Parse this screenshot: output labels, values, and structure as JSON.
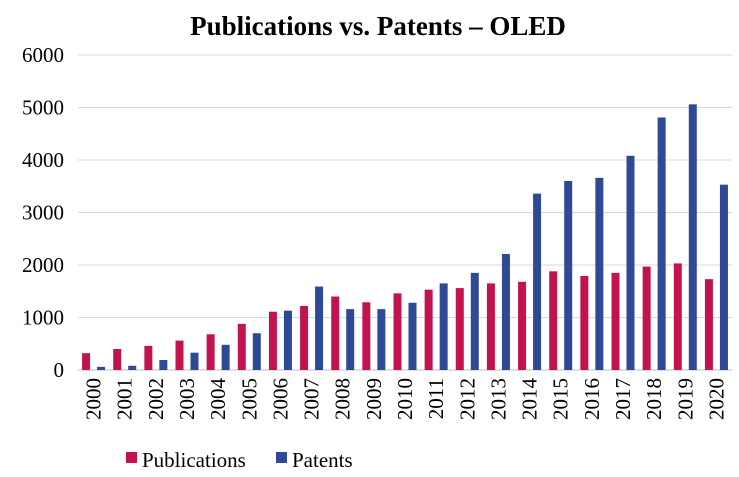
{
  "chart_data": {
    "type": "bar",
    "title": "Publications vs. Patents – OLED",
    "xlabel": "",
    "ylabel": "",
    "ylim": [
      0,
      6000
    ],
    "yticks": [
      "0",
      "1000",
      "2000",
      "3000",
      "4000",
      "5000",
      "6000"
    ],
    "grid": true,
    "legend_position": "bottom-left",
    "categories": [
      "2000",
      "2001",
      "2002",
      "2003",
      "2004",
      "2005",
      "2006",
      "2007",
      "2008",
      "2009",
      "2010",
      "2011",
      "2012",
      "2013",
      "2014",
      "2015",
      "2016",
      "2017",
      "2018",
      "2019",
      "2020"
    ],
    "series": [
      {
        "name": "Publications",
        "color": "#c3134f",
        "values": [
          320,
          400,
          460,
          560,
          680,
          880,
          1110,
          1220,
          1400,
          1290,
          1460,
          1530,
          1560,
          1650,
          1680,
          1880,
          1790,
          1850,
          1970,
          2030,
          1730
        ]
      },
      {
        "name": "Patents",
        "color": "#2e4a96",
        "values": [
          60,
          80,
          190,
          330,
          480,
          700,
          1130,
          1590,
          1160,
          1160,
          1280,
          1650,
          1850,
          2210,
          3360,
          3600,
          3660,
          4080,
          4810,
          5060,
          3530
        ]
      }
    ]
  }
}
